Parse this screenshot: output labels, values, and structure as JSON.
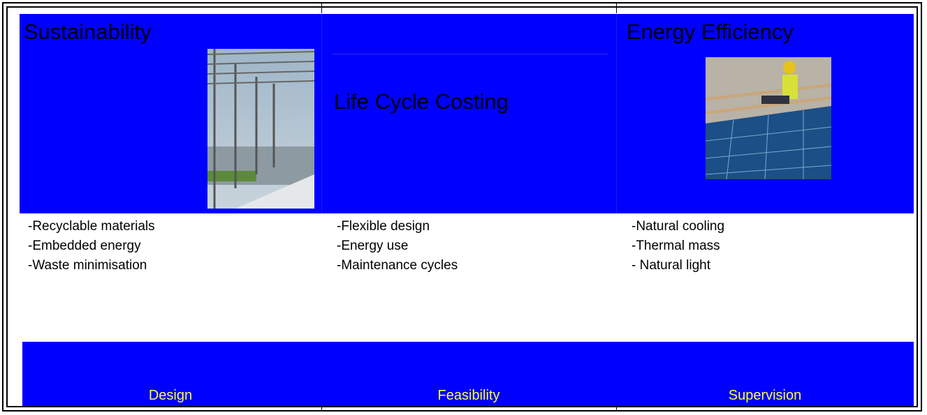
{
  "columns": [
    {
      "title": "Sustainability",
      "items": [
        "-Recyclable materials",
        "-Embedded energy",
        "-Waste minimisation"
      ],
      "footer": "Design"
    },
    {
      "title": "Life Cycle Costing",
      "items": [
        "-Flexible design",
        "-Energy use",
        "-Maintenance cycles"
      ],
      "footer": "Feasibility"
    },
    {
      "title": "Energy Efficiency",
      "items": [
        "-Natural cooling",
        "-Thermal mass",
        "- Natural light"
      ],
      "footer": "Supervision"
    }
  ]
}
